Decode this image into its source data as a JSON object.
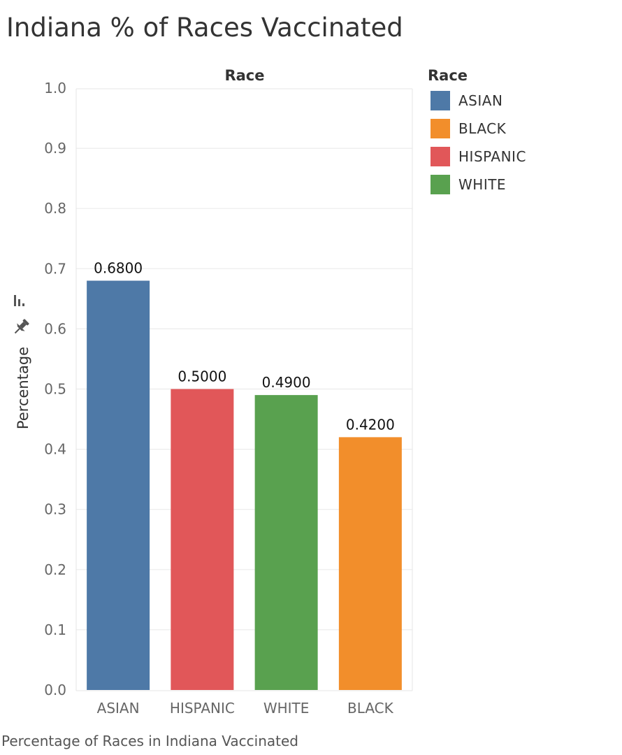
{
  "title": "Indiana % of Races Vaccinated",
  "caption": "Percentage of Races in Indiana Vaccinated",
  "icons": [
    "bar-chart-icon",
    "pin-icon"
  ],
  "chart_data": {
    "type": "bar",
    "column_header": "Race",
    "xlabel": "",
    "ylabel": "Percentage",
    "categories": [
      "ASIAN",
      "HISPANIC",
      "WHITE",
      "BLACK"
    ],
    "values": [
      0.68,
      0.5,
      0.49,
      0.42
    ],
    "data_labels": [
      "0.6800",
      "0.5000",
      "0.4900",
      "0.4200"
    ],
    "colors": [
      "#4e79a7",
      "#e15759",
      "#59a14f",
      "#f28e2b"
    ],
    "ylim": [
      0,
      1.0
    ],
    "yticks": [
      0.0,
      0.1,
      0.2,
      0.3,
      0.4,
      0.5,
      0.6,
      0.7,
      0.8,
      0.9,
      1.0
    ],
    "ytick_labels": [
      "0.0",
      "0.1",
      "0.2",
      "0.3",
      "0.4",
      "0.5",
      "0.6",
      "0.7",
      "0.8",
      "0.9",
      "1.0"
    ],
    "grid": true,
    "legend_position": "right"
  },
  "legend": {
    "title": "Race",
    "items": [
      {
        "label": "ASIAN",
        "color": "#4e79a7"
      },
      {
        "label": "BLACK",
        "color": "#f28e2b"
      },
      {
        "label": "HISPANIC",
        "color": "#e15759"
      },
      {
        "label": "WHITE",
        "color": "#59a14f"
      }
    ]
  }
}
